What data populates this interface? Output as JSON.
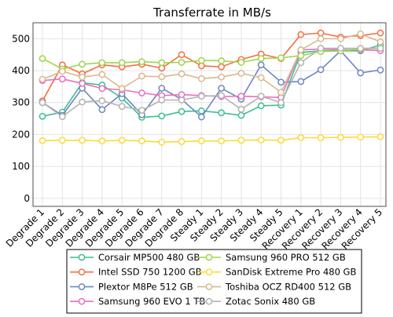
{
  "chart_data": {
    "type": "line",
    "title": "Transferrate in MB/s",
    "xlabel": "",
    "ylabel": "",
    "ylim": [
      -25,
      550
    ],
    "yticks": [
      0,
      100,
      200,
      300,
      400,
      500
    ],
    "grid": true,
    "legend_position": "bottom",
    "categories": [
      "Degrade 1",
      "Degrade 2",
      "Degrade 3",
      "Degrade 4",
      "Degrade 5",
      "Degrade 6",
      "Degrade 7",
      "Degrade 8",
      "Steady 1",
      "Steady 2",
      "Steady 3",
      "Steady 4",
      "Steady 5",
      "Recovery 1",
      "Recovery 2",
      "Recovery 3",
      "Recovery 4",
      "Recovery 5"
    ],
    "series": [
      {
        "name": "Corsair MP500 480 GB",
        "color": "#3dbf8f",
        "values": [
          257,
          270,
          362,
          355,
          314,
          254,
          258,
          272,
          274,
          268,
          260,
          290,
          292,
          457,
          462,
          462,
          462,
          480
        ]
      },
      {
        "name": "Intel SSD 750 1200 GB",
        "color": "#f36f44",
        "values": [
          305,
          418,
          390,
          418,
          412,
          420,
          408,
          450,
          415,
          412,
          435,
          452,
          438,
          513,
          518,
          505,
          510,
          518
        ]
      },
      {
        "name": "Plextor M8Pe 512 GB",
        "color": "#6f86c0",
        "values": [
          300,
          260,
          345,
          278,
          328,
          262,
          345,
          310,
          255,
          345,
          311,
          418,
          364,
          366,
          403,
          462,
          393,
          402
        ]
      },
      {
        "name": "Samsung 960 EVO 1 TB",
        "color": "#ea6fc0",
        "values": [
          369,
          374,
          360,
          344,
          340,
          330,
          322,
          325,
          322,
          319,
          320,
          318,
          316,
          465,
          468,
          465,
          465,
          463
        ]
      },
      {
        "name": "Samsung 960 PRO 512 GB",
        "color": "#9ed64a",
        "values": [
          438,
          405,
          420,
          425,
          425,
          428,
          425,
          426,
          432,
          431,
          426,
          438,
          440,
          447,
          460,
          462,
          468,
          470
        ]
      },
      {
        "name": "SanDisk Extreme Pro 480 GB",
        "color": "#fcd93d",
        "values": [
          181,
          182,
          182,
          180,
          182,
          180,
          176,
          178,
          180,
          180,
          182,
          183,
          182,
          190,
          190,
          191,
          192,
          193
        ]
      },
      {
        "name": "Toshiba OCZ RD400 512 GB",
        "color": "#d8b98f",
        "values": [
          373,
          398,
          380,
          388,
          344,
          383,
          381,
          390,
          375,
          380,
          392,
          378,
          332,
          465,
          500,
          500,
          515,
          490
        ]
      },
      {
        "name": "Zotac Sonix 480 GB",
        "color": "#b3b3b3",
        "values": [
          300,
          256,
          302,
          306,
          288,
          276,
          308,
          308,
          320,
          322,
          279,
          320,
          300,
          425,
          470,
          470,
          470,
          470
        ]
      }
    ]
  }
}
